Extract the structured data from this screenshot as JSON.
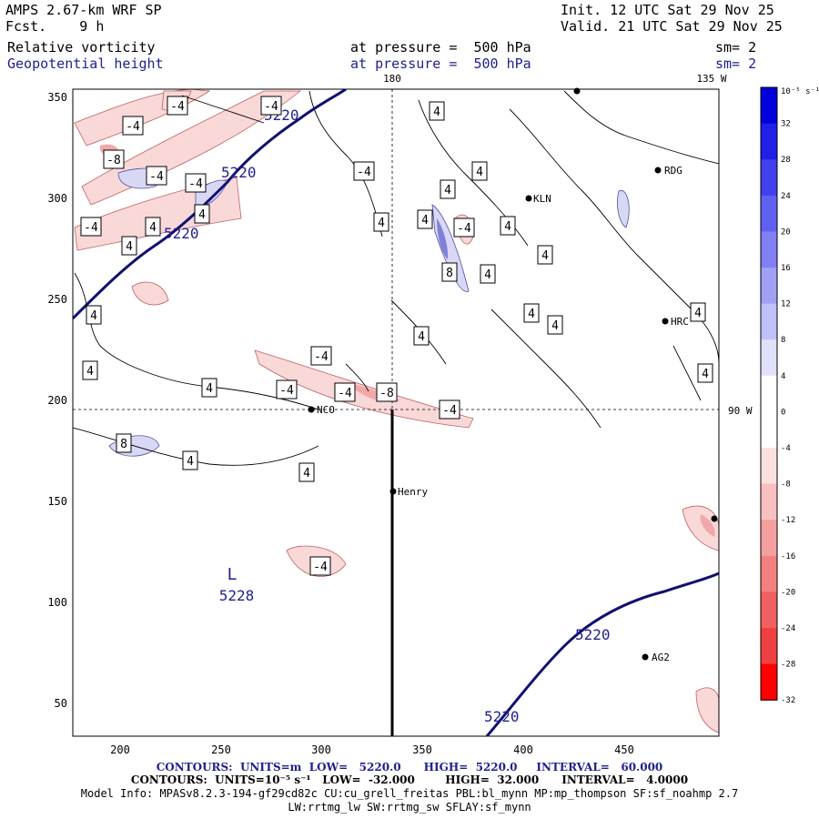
{
  "header": {
    "model": "AMPS 2.67-km WRF SP",
    "fcst_label": "Fcst.",
    "fcst_value": "9 h",
    "init": "Init. 12 UTC Sat 29 Nov 25",
    "valid": "Valid. 21 UTC Sat 29 Nov 25",
    "fields": [
      {
        "name": "Relative vorticity",
        "level": "at pressure =  500 hPa",
        "smooth": "sm= 2"
      },
      {
        "name": "Geopotential height",
        "level": "at pressure =  500 hPa",
        "smooth": "sm= 2"
      }
    ]
  },
  "map": {
    "x_ticks": [
      "200",
      "250",
      "300",
      "350",
      "400",
      "450"
    ],
    "y_ticks": [
      "350",
      "300",
      "250",
      "200",
      "150",
      "100",
      "50"
    ],
    "meridian_labels": {
      "top_180": "180",
      "top_135w": "135 W",
      "right_90w": "90 W"
    },
    "stations": [
      {
        "name": "NCO"
      },
      {
        "name": "Henry"
      },
      {
        "name": "KLN"
      },
      {
        "name": "RDG"
      },
      {
        "name": "HRC"
      },
      {
        "name": "AG2"
      }
    ],
    "low_center": {
      "symbol": "L",
      "value": "5228"
    },
    "height_labels": [
      "5220",
      "5220",
      "5220",
      "5220",
      "5220"
    ],
    "vorticity_labels": {
      "neg4": "-4",
      "neg8": "-8",
      "pos4": "4",
      "pos8": "8"
    }
  },
  "colorbar": {
    "unit": "10⁻⁵ s⁻¹",
    "labels": [
      "32",
      "28",
      "24",
      "20",
      "16",
      "12",
      "8",
      "4",
      "0",
      "-4",
      "-8",
      "-12",
      "-16",
      "-20",
      "-24",
      "-28",
      "-32"
    ],
    "colors": [
      "#0000dd",
      "#2020e8",
      "#4040ee",
      "#6060f0",
      "#8080f2",
      "#a0a0f5",
      "#c0c0f8",
      "#e0e0fb",
      "#ffffff",
      "#ffffff",
      "#fce0e0",
      "#f8c0c0",
      "#f5a0a0",
      "#f28080",
      "#f06060",
      "#ee4040",
      "#ff0000"
    ]
  },
  "footer": {
    "line1": "CONTOURS:  UNITS=m  LOW=   5220.0      HIGH=  5220.0     INTERVAL=   60.000",
    "line2": "CONTOURS:  UNITS=10⁻⁵ s⁻¹   LOW=  -32.000        HIGH=  32.000      INTERVAL=   4.0000",
    "line3": "Model Info: MPASv8.2.3-194-gf29cd82c CU:cu_grell_freitas PBL:bl_mynn MP:mp_thompson SF:sf_noahmp 2.7",
    "line4": "LW:rrtmg_lw SW:rrtmg_sw SFLAY:sf_mynn"
  }
}
